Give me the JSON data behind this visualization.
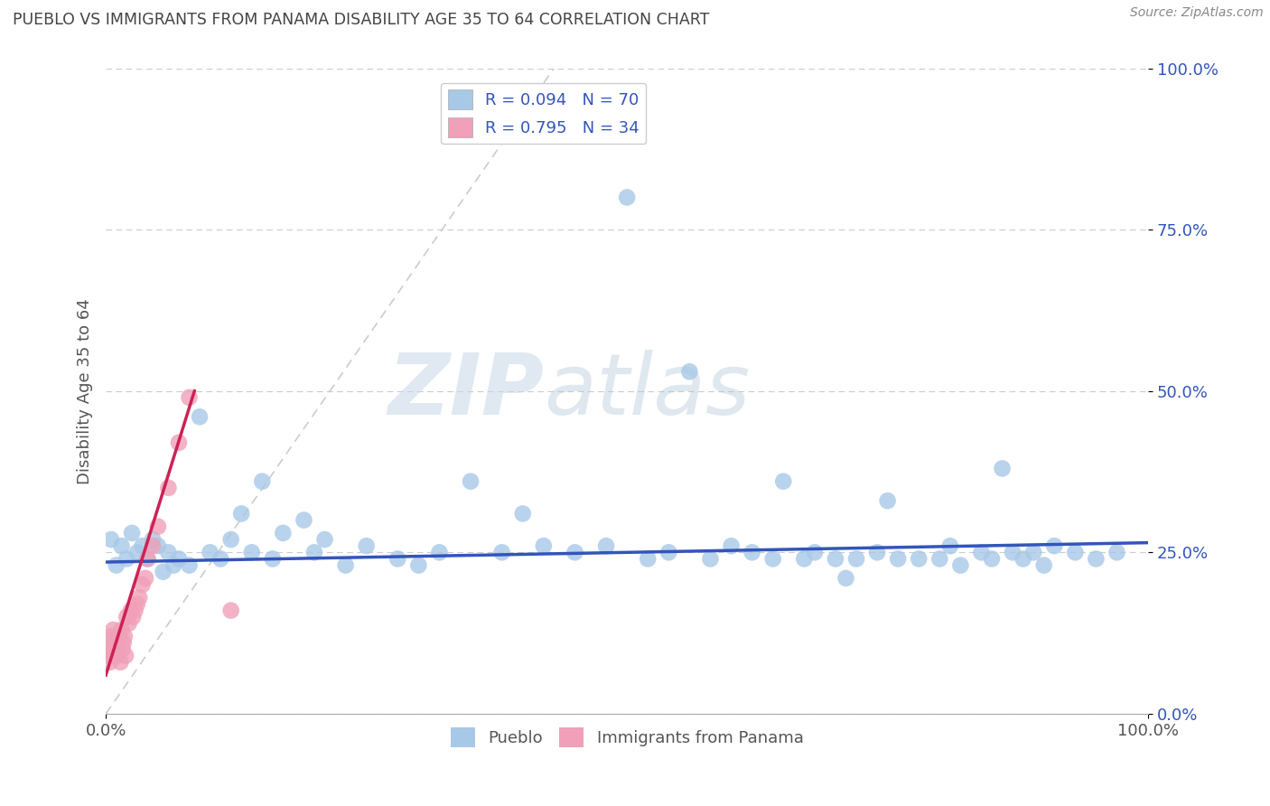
{
  "title": "PUEBLO VS IMMIGRANTS FROM PANAMA DISABILITY AGE 35 TO 64 CORRELATION CHART",
  "source": "Source: ZipAtlas.com",
  "ylabel": "Disability Age 35 to 64",
  "x_min": 0.0,
  "x_max": 1.0,
  "y_min": 0.0,
  "y_max": 1.0,
  "y_tick_positions": [
    0.0,
    0.25,
    0.5,
    0.75,
    1.0
  ],
  "y_tick_labels": [
    "0.0%",
    "25.0%",
    "50.0%",
    "75.0%",
    "100.0%"
  ],
  "legend_r1": "R = 0.094",
  "legend_n1": "N = 70",
  "legend_r2": "R = 0.795",
  "legend_n2": "N = 34",
  "watermark_zip": "ZIP",
  "watermark_atlas": "atlas",
  "blue_color": "#a8c8e8",
  "pink_color": "#f0a0b8",
  "blue_line_color": "#3355bb",
  "pink_line_color": "#cc2255",
  "title_color": "#444444",
  "label_color": "#555555",
  "tick_color": "#3355bb",
  "source_color": "#888888",
  "blue_scatter_x": [
    0.005,
    0.01,
    0.015,
    0.02,
    0.025,
    0.03,
    0.035,
    0.04,
    0.045,
    0.05,
    0.055,
    0.06,
    0.065,
    0.07,
    0.08,
    0.09,
    0.1,
    0.11,
    0.12,
    0.13,
    0.14,
    0.15,
    0.16,
    0.17,
    0.19,
    0.2,
    0.21,
    0.23,
    0.25,
    0.28,
    0.3,
    0.32,
    0.35,
    0.38,
    0.4,
    0.42,
    0.45,
    0.48,
    0.5,
    0.52,
    0.54,
    0.56,
    0.58,
    0.6,
    0.62,
    0.64,
    0.65,
    0.67,
    0.68,
    0.7,
    0.71,
    0.72,
    0.74,
    0.75,
    0.76,
    0.78,
    0.8,
    0.81,
    0.82,
    0.84,
    0.85,
    0.86,
    0.87,
    0.88,
    0.89,
    0.9,
    0.91,
    0.93,
    0.95,
    0.97
  ],
  "blue_scatter_y": [
    0.27,
    0.23,
    0.26,
    0.24,
    0.28,
    0.25,
    0.26,
    0.24,
    0.27,
    0.26,
    0.22,
    0.25,
    0.23,
    0.24,
    0.23,
    0.46,
    0.25,
    0.24,
    0.27,
    0.31,
    0.25,
    0.36,
    0.24,
    0.28,
    0.3,
    0.25,
    0.27,
    0.23,
    0.26,
    0.24,
    0.23,
    0.25,
    0.36,
    0.25,
    0.31,
    0.26,
    0.25,
    0.26,
    0.8,
    0.24,
    0.25,
    0.53,
    0.24,
    0.26,
    0.25,
    0.24,
    0.36,
    0.24,
    0.25,
    0.24,
    0.21,
    0.24,
    0.25,
    0.33,
    0.24,
    0.24,
    0.24,
    0.26,
    0.23,
    0.25,
    0.24,
    0.38,
    0.25,
    0.24,
    0.25,
    0.23,
    0.26,
    0.25,
    0.24,
    0.25
  ],
  "pink_scatter_x": [
    0.002,
    0.003,
    0.004,
    0.005,
    0.006,
    0.007,
    0.008,
    0.009,
    0.01,
    0.011,
    0.012,
    0.013,
    0.014,
    0.015,
    0.016,
    0.017,
    0.018,
    0.019,
    0.02,
    0.022,
    0.024,
    0.026,
    0.028,
    0.03,
    0.032,
    0.035,
    0.038,
    0.04,
    0.045,
    0.05,
    0.06,
    0.07,
    0.08,
    0.12
  ],
  "pink_scatter_y": [
    0.09,
    0.11,
    0.08,
    0.12,
    0.1,
    0.13,
    0.09,
    0.1,
    0.11,
    0.09,
    0.1,
    0.12,
    0.08,
    0.13,
    0.1,
    0.11,
    0.12,
    0.09,
    0.15,
    0.14,
    0.16,
    0.15,
    0.16,
    0.17,
    0.18,
    0.2,
    0.21,
    0.24,
    0.26,
    0.29,
    0.35,
    0.42,
    0.49,
    0.16
  ],
  "blue_line_x": [
    0.0,
    1.0
  ],
  "blue_line_y": [
    0.235,
    0.265
  ],
  "pink_line_x": [
    0.0,
    0.085
  ],
  "pink_line_y": [
    0.06,
    0.5
  ],
  "diag_line_x": [
    0.0,
    0.43
  ],
  "diag_line_y": [
    0.0,
    1.0
  ]
}
